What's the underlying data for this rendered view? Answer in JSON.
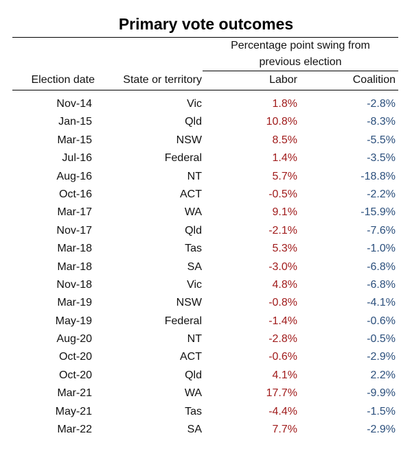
{
  "chart_data": {
    "type": "table",
    "title": "Primary vote outcomes",
    "group_header": [
      "Percentage point swing from",
      "previous election"
    ],
    "columns": [
      "Election date",
      "State or territory",
      "Labor",
      "Coalition"
    ],
    "colors": {
      "labor": "#a01b1b",
      "coalition": "#2b4f7c"
    },
    "rows": [
      [
        "Nov-14",
        "Vic",
        "1.8%",
        "-2.8%"
      ],
      [
        "Jan-15",
        "Qld",
        "10.8%",
        "-8.3%"
      ],
      [
        "Mar-15",
        "NSW",
        "8.5%",
        "-5.5%"
      ],
      [
        "Jul-16",
        "Federal",
        "1.4%",
        "-3.5%"
      ],
      [
        "Aug-16",
        "NT",
        "5.7%",
        "-18.8%"
      ],
      [
        "Oct-16",
        "ACT",
        "-0.5%",
        "-2.2%"
      ],
      [
        "Mar-17",
        "WA",
        "9.1%",
        "-15.9%"
      ],
      [
        "Nov-17",
        "Qld",
        "-2.1%",
        "-7.6%"
      ],
      [
        "Mar-18",
        "Tas",
        "5.3%",
        "-1.0%"
      ],
      [
        "Mar-18",
        "SA",
        "-3.0%",
        "-6.8%"
      ],
      [
        "Nov-18",
        "Vic",
        "4.8%",
        "-6.8%"
      ],
      [
        "Mar-19",
        "NSW",
        "-0.8%",
        "-4.1%"
      ],
      [
        "May-19",
        "Federal",
        "-1.4%",
        "-0.6%"
      ],
      [
        "Aug-20",
        "NT",
        "-2.8%",
        "-0.5%"
      ],
      [
        "Oct-20",
        "ACT",
        "-0.6%",
        "-2.9%"
      ],
      [
        "Oct-20",
        "Qld",
        "4.1%",
        "2.2%"
      ],
      [
        "Mar-21",
        "WA",
        "17.7%",
        "-9.9%"
      ],
      [
        "May-21",
        "Tas",
        "-4.4%",
        "-1.5%"
      ],
      [
        "Mar-22",
        "SA",
        "7.7%",
        "-2.9%"
      ]
    ]
  }
}
